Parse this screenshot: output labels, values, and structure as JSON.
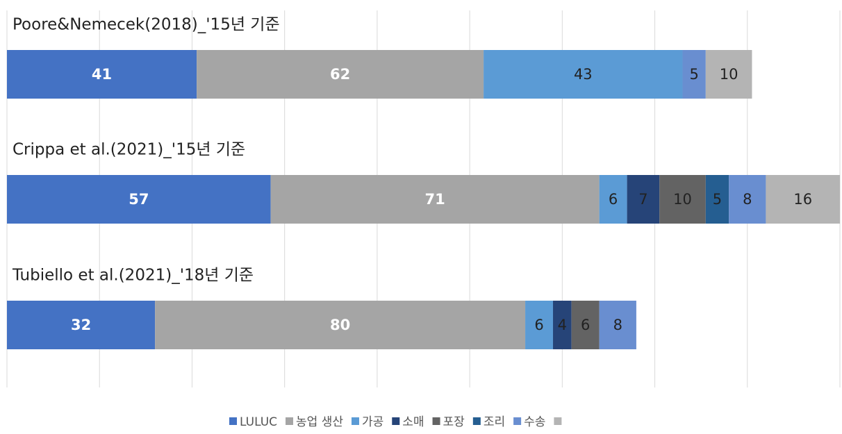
{
  "chart_data": {
    "type": "stacked-barh",
    "categories": [
      "Poore&Nemecek(2018)_'15년 기준",
      "Crippa et al.(2021)_'15년 기준",
      "Tubiello et al.(2021)_'18년 기준"
    ],
    "series": [
      {
        "name": "LULUC",
        "color": "#4472c4",
        "values": [
          41,
          57,
          32
        ]
      },
      {
        "name": "농업 생산",
        "color": "#a5a5a5",
        "values": [
          62,
          71,
          80
        ]
      },
      {
        "name": "가공",
        "color": "#5b9bd5",
        "values": [
          43,
          6,
          6
        ]
      },
      {
        "name": "소매",
        "color": "#264478",
        "values": [
          null,
          7,
          4
        ]
      },
      {
        "name": "포장",
        "color": "#636363",
        "values": [
          null,
          10,
          6
        ]
      },
      {
        "name": "조리",
        "color": "#255e91",
        "values": [
          null,
          5,
          null
        ]
      },
      {
        "name": "수송",
        "color": "#698ed0",
        "values": [
          5,
          8,
          8
        ]
      },
      {
        "color": "#b4b4b4",
        "values": [
          10,
          16,
          null
        ]
      }
    ],
    "xlim": [
      0,
      180
    ],
    "xticks": [
      0,
      20,
      40,
      60,
      80,
      100,
      120,
      140,
      160,
      180
    ],
    "grid": true
  }
}
